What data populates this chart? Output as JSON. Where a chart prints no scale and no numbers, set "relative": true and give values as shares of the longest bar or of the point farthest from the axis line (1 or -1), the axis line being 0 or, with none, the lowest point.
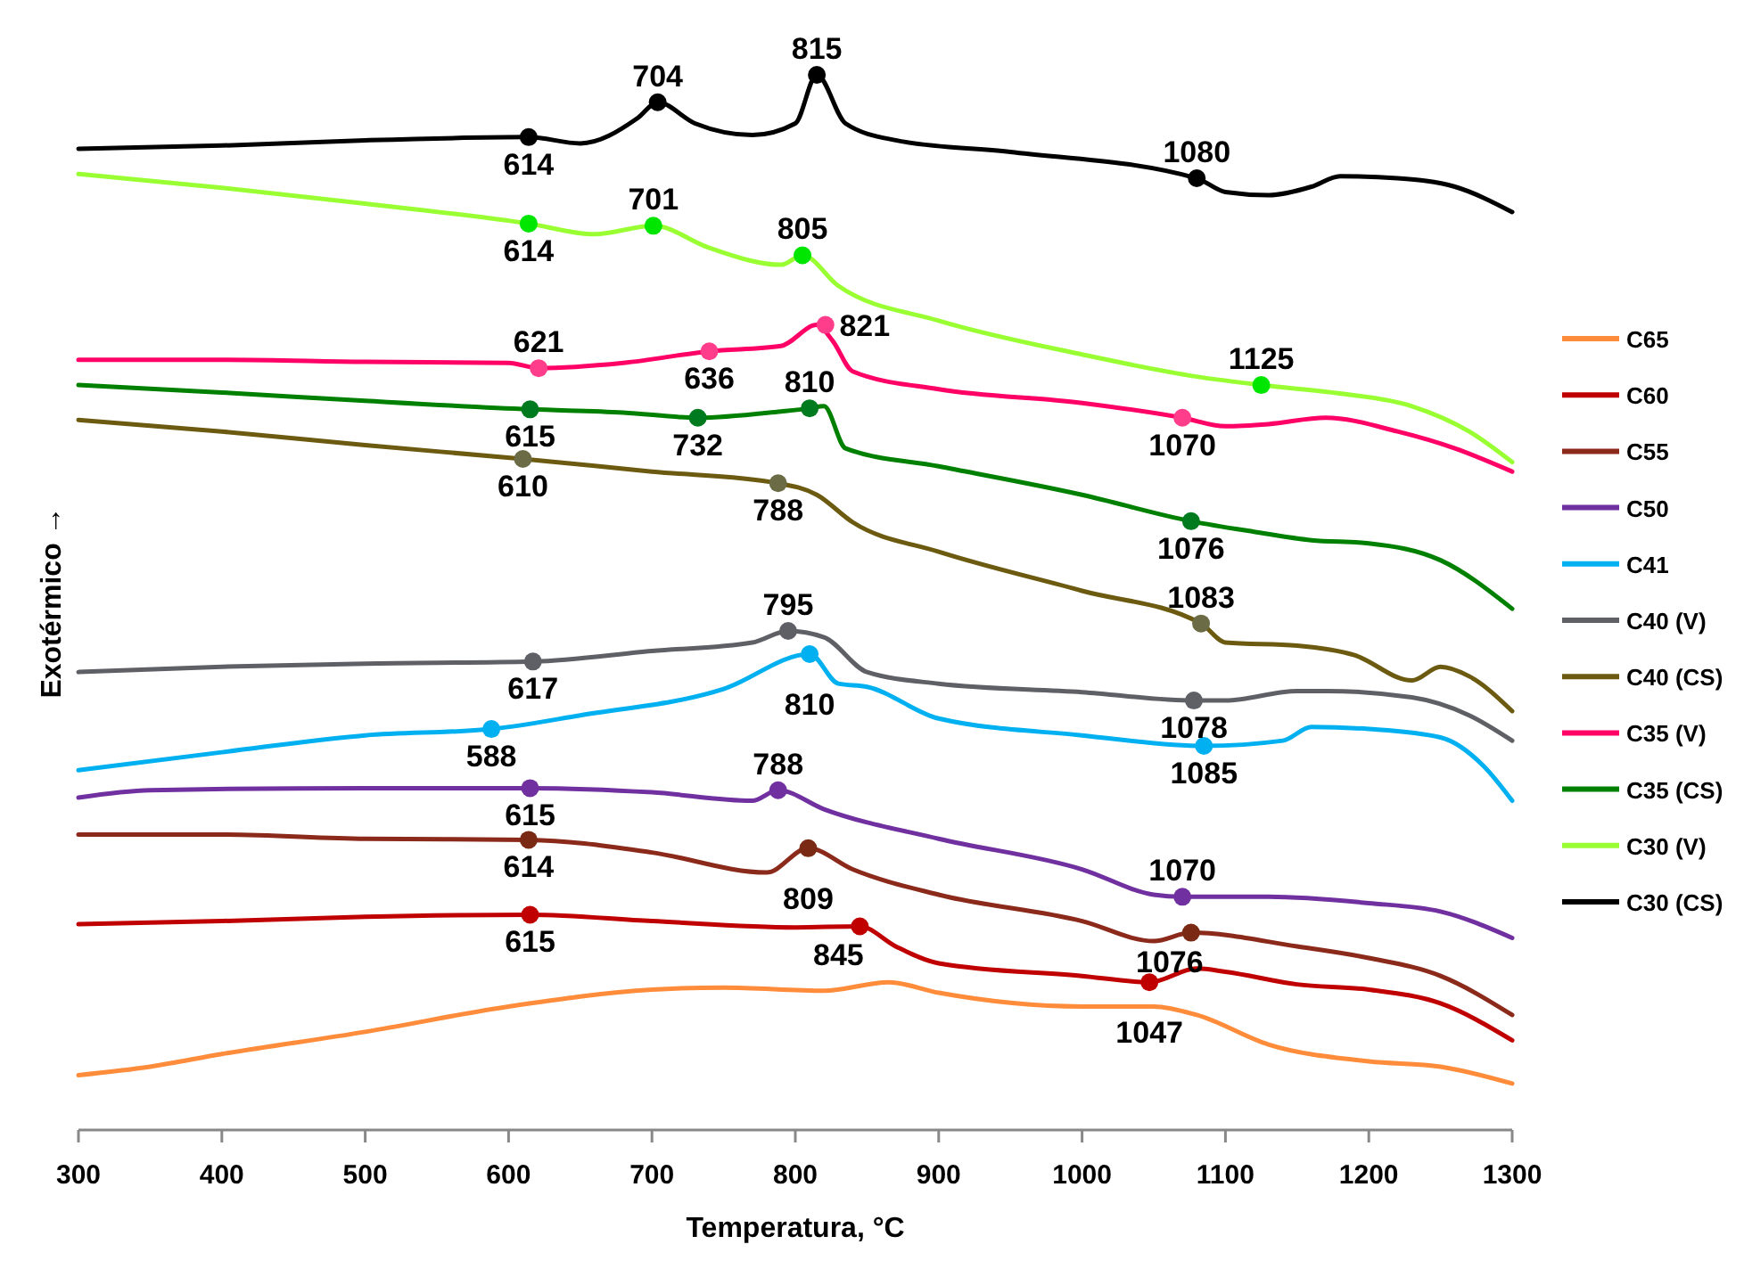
{
  "chart_data": {
    "type": "line",
    "relative": true,
    "xlabel": "Temperatura, °C",
    "ylabel": "Exotérmico →",
    "xlim": [
      300,
      1300
    ],
    "xticks": [
      300,
      400,
      500,
      600,
      700,
      800,
      900,
      1000,
      1100,
      1200,
      1300
    ],
    "grid": false,
    "legend": "right",
    "line_style": "solid",
    "series": [
      {
        "name": "C65",
        "color": "#ff8c3a",
        "x": [
          300,
          350,
          400,
          500,
          600,
          700,
          750,
          820,
          865,
          900,
          1000,
          1050,
          1080,
          1130,
          1200,
          1250,
          1300
        ],
        "values": [
          0.052,
          0.06,
          0.072,
          0.093,
          0.117,
          0.133,
          0.135,
          0.132,
          0.14,
          0.13,
          0.117,
          0.117,
          0.109,
          0.081,
          0.065,
          0.06,
          0.044
        ]
      },
      {
        "name": "C60",
        "color": "#c00000",
        "x": [
          300,
          400,
          500,
          615,
          700,
          800,
          845,
          870,
          900,
          1000,
          1047,
          1080,
          1100,
          1150,
          1200,
          1250,
          1300
        ],
        "values": [
          0.195,
          0.198,
          0.202,
          0.204,
          0.198,
          0.192,
          0.193,
          0.174,
          0.158,
          0.146,
          0.14,
          0.153,
          0.15,
          0.138,
          0.133,
          0.12,
          0.085
        ]
      },
      {
        "name": "C55",
        "color": "#8b2a1a",
        "x": [
          300,
          400,
          500,
          614,
          700,
          780,
          809,
          840,
          900,
          1000,
          1050,
          1076,
          1150,
          1200,
          1250,
          1300
        ],
        "values": [
          0.28,
          0.28,
          0.276,
          0.275,
          0.263,
          0.244,
          0.267,
          0.247,
          0.223,
          0.198,
          0.179,
          0.187,
          0.174,
          0.163,
          0.146,
          0.109
        ]
      },
      {
        "name": "C50",
        "color": "#7030a0",
        "x": [
          300,
          350,
          500,
          615,
          700,
          770,
          788,
          820,
          900,
          1000,
          1050,
          1070,
          1130,
          1200,
          1250,
          1300
        ],
        "values": [
          0.315,
          0.322,
          0.324,
          0.324,
          0.32,
          0.312,
          0.322,
          0.304,
          0.276,
          0.247,
          0.223,
          0.221,
          0.221,
          0.215,
          0.207,
          0.182
        ]
      },
      {
        "name": "C41",
        "color": "#00b0f0",
        "x": [
          300,
          400,
          500,
          588,
          650,
          750,
          810,
          830,
          850,
          900,
          1000,
          1085,
          1140,
          1160,
          1200,
          1250,
          1280,
          1300
        ],
        "values": [
          0.341,
          0.358,
          0.374,
          0.38,
          0.393,
          0.418,
          0.451,
          0.423,
          0.42,
          0.39,
          0.374,
          0.364,
          0.369,
          0.382,
          0.38,
          0.372,
          0.345,
          0.312
        ]
      },
      {
        "name": "C40 (V)",
        "color": "#5f6066",
        "x": [
          300,
          400,
          500,
          617,
          700,
          770,
          795,
          820,
          850,
          900,
          1000,
          1078,
          1100,
          1150,
          1170,
          1230,
          1270,
          1300
        ],
        "values": [
          0.434,
          0.439,
          0.442,
          0.444,
          0.454,
          0.462,
          0.473,
          0.467,
          0.434,
          0.423,
          0.415,
          0.407,
          0.407,
          0.416,
          0.416,
          0.41,
          0.393,
          0.369
        ]
      },
      {
        "name": "C40 (CS)",
        "color": "#6b5a10",
        "x": [
          300,
          400,
          500,
          610,
          700,
          788,
          815,
          840,
          900,
          1000,
          1083,
          1100,
          1150,
          1190,
          1230,
          1250,
          1270,
          1300
        ],
        "values": [
          0.673,
          0.662,
          0.649,
          0.636,
          0.624,
          0.613,
          0.602,
          0.576,
          0.548,
          0.511,
          0.48,
          0.462,
          0.459,
          0.45,
          0.426,
          0.439,
          0.43,
          0.397
        ]
      },
      {
        "name": "C35 (V)",
        "color": "#ff0066",
        "x": [
          300,
          400,
          500,
          600,
          621,
          680,
          740,
          790,
          815,
          826,
          840,
          900,
          1000,
          1070,
          1100,
          1130,
          1170,
          1220,
          1260,
          1300
        ],
        "values": [
          0.73,
          0.73,
          0.728,
          0.727,
          0.722,
          0.727,
          0.738,
          0.743,
          0.763,
          0.748,
          0.719,
          0.702,
          0.689,
          0.675,
          0.667,
          0.669,
          0.675,
          0.662,
          0.646,
          0.624
        ]
      },
      {
        "name": "C35 (CS)",
        "color": "#008000",
        "x": [
          300,
          400,
          500,
          615,
          680,
          732,
          790,
          810,
          820,
          835,
          900,
          1000,
          1076,
          1120,
          1160,
          1200,
          1250,
          1300
        ],
        "values": [
          0.706,
          0.699,
          0.691,
          0.683,
          0.68,
          0.675,
          0.681,
          0.684,
          0.686,
          0.646,
          0.629,
          0.602,
          0.577,
          0.567,
          0.559,
          0.556,
          0.54,
          0.494
        ]
      },
      {
        "name": "C30 (V)",
        "color": "#99ff33",
        "x": [
          300,
          400,
          500,
          614,
          660,
          701,
          740,
          790,
          805,
          830,
          900,
          1000,
          1080,
          1125,
          1180,
          1230,
          1270,
          1300
        ],
        "values": [
          0.906,
          0.893,
          0.878,
          0.859,
          0.849,
          0.857,
          0.836,
          0.82,
          0.829,
          0.8,
          0.767,
          0.735,
          0.714,
          0.706,
          0.698,
          0.686,
          0.662,
          0.633
        ]
      },
      {
        "name": "C30 (CS)",
        "color": "#000000",
        "x": [
          300,
          400,
          500,
          614,
          650,
          690,
          704,
          730,
          770,
          800,
          815,
          835,
          870,
          950,
          1080,
          1100,
          1130,
          1160,
          1180,
          1220,
          1260,
          1300
        ],
        "values": [
          0.93,
          0.933,
          0.938,
          0.941,
          0.935,
          0.959,
          0.974,
          0.954,
          0.943,
          0.954,
          1.0,
          0.954,
          0.938,
          0.927,
          0.902,
          0.889,
          0.886,
          0.894,
          0.904,
          0.902,
          0.894,
          0.87
        ]
      },
      {
        "type": "scatter",
        "marker": "circle",
        "color": "#000000",
        "x": [
          614,
          704,
          815,
          1080
        ],
        "values": [
          0.941,
          0.974,
          1.0,
          0.902
        ]
      },
      {
        "type": "scatter",
        "marker": "circle",
        "color": "#00e600",
        "x": [
          614,
          701,
          805,
          1125
        ],
        "values": [
          0.859,
          0.857,
          0.829,
          0.706
        ]
      },
      {
        "type": "scatter",
        "marker": "circle",
        "color": "#ff3d8b",
        "x": [
          621,
          740,
          821,
          1070
        ],
        "values": [
          0.722,
          0.738,
          0.763,
          0.675
        ]
      },
      {
        "type": "scatter",
        "marker": "circle",
        "color": "#007a1f",
        "x": [
          615,
          732,
          810,
          1076
        ],
        "values": [
          0.683,
          0.675,
          0.684,
          0.577
        ]
      },
      {
        "type": "scatter",
        "marker": "circle",
        "color": "#6b6b45",
        "x": [
          610,
          788,
          1083
        ],
        "values": [
          0.636,
          0.613,
          0.48
        ]
      },
      {
        "type": "scatter",
        "marker": "circle",
        "color": "#5f6066",
        "x": [
          617,
          795,
          1078
        ],
        "values": [
          0.444,
          0.473,
          0.407
        ]
      },
      {
        "type": "scatter",
        "marker": "circle",
        "color": "#00b0f0",
        "x": [
          588,
          810,
          1085
        ],
        "values": [
          0.38,
          0.451,
          0.364
        ]
      },
      {
        "type": "scatter",
        "marker": "circle",
        "color": "#7030a0",
        "x": [
          615,
          788,
          1070
        ],
        "values": [
          0.324,
          0.322,
          0.221
        ]
      },
      {
        "type": "scatter",
        "marker": "circle",
        "color": "#7a2a14",
        "x": [
          614,
          809,
          1076
        ],
        "values": [
          0.275,
          0.267,
          0.187
        ]
      },
      {
        "type": "scatter",
        "marker": "circle",
        "color": "#c00000",
        "x": [
          615,
          845,
          1047
        ],
        "values": [
          0.204,
          0.193,
          0.14
        ]
      }
    ],
    "annotations": [
      {
        "text": "614",
        "x": 614,
        "y": 0.941
      },
      {
        "text": "704",
        "x": 704,
        "y": 0.974
      },
      {
        "text": "815",
        "x": 815,
        "y": 1.0
      },
      {
        "text": "1080",
        "x": 1080,
        "y": 0.902
      },
      {
        "text": "614",
        "x": 614,
        "y": 0.859
      },
      {
        "text": "701",
        "x": 701,
        "y": 0.857
      },
      {
        "text": "805",
        "x": 805,
        "y": 0.829
      },
      {
        "text": "1125",
        "x": 1125,
        "y": 0.706
      },
      {
        "text": "621",
        "x": 621,
        "y": 0.722
      },
      {
        "text": "636",
        "x": 740,
        "y": 0.738
      },
      {
        "text": "821",
        "x": 821,
        "y": 0.763
      },
      {
        "text": "1070",
        "x": 1070,
        "y": 0.675
      },
      {
        "text": "615",
        "x": 615,
        "y": 0.683
      },
      {
        "text": "732",
        "x": 732,
        "y": 0.675
      },
      {
        "text": "810",
        "x": 810,
        "y": 0.684
      },
      {
        "text": "1076",
        "x": 1076,
        "y": 0.577
      },
      {
        "text": "610",
        "x": 610,
        "y": 0.636
      },
      {
        "text": "788",
        "x": 788,
        "y": 0.613
      },
      {
        "text": "1083",
        "x": 1083,
        "y": 0.48
      },
      {
        "text": "617",
        "x": 617,
        "y": 0.444
      },
      {
        "text": "795",
        "x": 795,
        "y": 0.473
      },
      {
        "text": "1078",
        "x": 1078,
        "y": 0.407
      },
      {
        "text": "588",
        "x": 588,
        "y": 0.38
      },
      {
        "text": "810",
        "x": 810,
        "y": 0.451
      },
      {
        "text": "1085",
        "x": 1085,
        "y": 0.364
      },
      {
        "text": "615",
        "x": 615,
        "y": 0.324
      },
      {
        "text": "788",
        "x": 788,
        "y": 0.322
      },
      {
        "text": "1070",
        "x": 1070,
        "y": 0.221
      },
      {
        "text": "614",
        "x": 614,
        "y": 0.275
      },
      {
        "text": "809",
        "x": 809,
        "y": 0.267
      },
      {
        "text": "1076",
        "x": 1076,
        "y": 0.187
      },
      {
        "text": "615",
        "x": 615,
        "y": 0.204
      },
      {
        "text": "845",
        "x": 845,
        "y": 0.193
      },
      {
        "text": "1047",
        "x": 1047,
        "y": 0.14
      }
    ]
  }
}
